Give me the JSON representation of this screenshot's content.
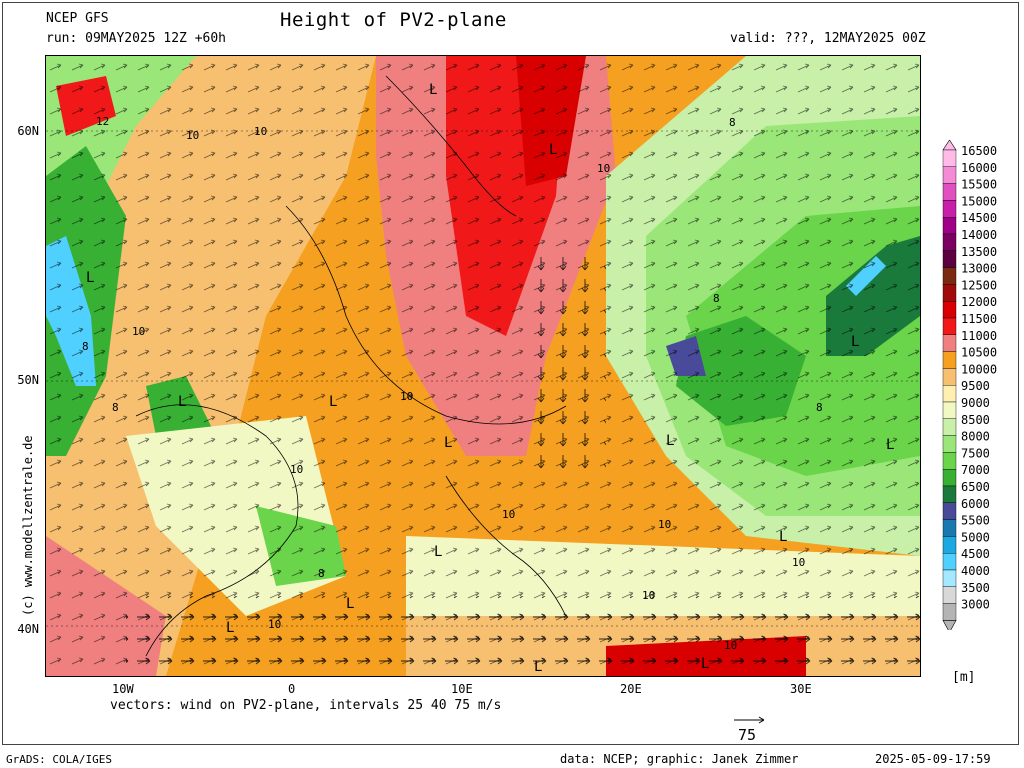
{
  "header": {
    "model": "NCEP GFS",
    "title": "Height of PV2-plane",
    "run": "run: 09MAY2025 12Z +60h",
    "valid": "valid: ???, 12MAY2025 00Z"
  },
  "axes": {
    "lat_labels": [
      "60N",
      "50N",
      "40N"
    ],
    "lon_labels": [
      "10W",
      "0",
      "10E",
      "20E",
      "30E"
    ]
  },
  "map_labels": {
    "low_marker": "L",
    "contour_values": [
      "12",
      "10",
      "8"
    ]
  },
  "legend": {
    "values": [
      "16500",
      "16000",
      "15500",
      "15000",
      "14500",
      "14000",
      "13500",
      "13000",
      "12500",
      "12000",
      "11500",
      "11000",
      "10500",
      "10000",
      "9500",
      "9000",
      "8500",
      "8000",
      "7500",
      "7000",
      "6500",
      "6000",
      "5500",
      "5000",
      "4500",
      "4000",
      "3500",
      "3000"
    ],
    "colors": [
      "#ffbbe8",
      "#f58ad6",
      "#e050c0",
      "#c820a8",
      "#a00088",
      "#7a0062",
      "#5c0040",
      "#7a2a10",
      "#a00a0a",
      "#d80000",
      "#f01818",
      "#f08080",
      "#f5a020",
      "#f7c070",
      "#fff0b0",
      "#f2f8c4",
      "#c8f0a8",
      "#9ae678",
      "#6ad44a",
      "#38b034",
      "#1a7a3c",
      "#4a4a9a",
      "#1878b0",
      "#1ca8e0",
      "#50d0ff",
      "#a6e8ff",
      "#d8d8d8",
      "#b4b4b4"
    ],
    "unit": "[m]"
  },
  "footer": {
    "vectors_note": "vectors: wind on PV2-plane, intervals 25 40 75 m/s",
    "ref_vector": "75",
    "credit": "(c) www.modellzentrale.de",
    "grads": "GrADS: COLA/IGES",
    "data_credit": "data: NCEP; graphic: Janek Zimmer",
    "timestamp": "2025-05-09-17:59"
  }
}
